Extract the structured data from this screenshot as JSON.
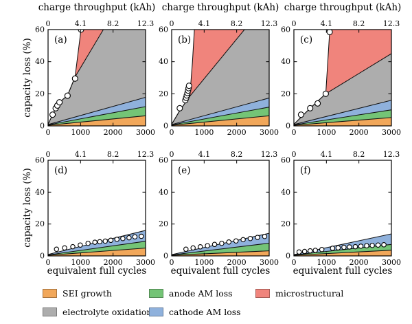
{
  "figure": {
    "top_axis_title": "charge throughput (kAh)",
    "bottom_axis_title": "equivalent full cycles",
    "y_axis_title": "capacity loss (%)"
  },
  "chart_data": {
    "type": "area",
    "description": "Stacked degradation-mechanism capacity loss vs equivalent full cycles, 6 panels (a)-(f); circles are measured capacity-loss data",
    "x_range": [
      0,
      3000
    ],
    "y_range": [
      0,
      60
    ],
    "grid": false,
    "x_ticks": {
      "values": [
        0,
        1000,
        2000,
        3000
      ],
      "labels": [
        "0",
        "1000",
        "2000",
        "3000"
      ]
    },
    "top_ticks": {
      "values": [
        0,
        1000,
        2000,
        3000
      ],
      "labels": [
        "0",
        "4.1",
        "8.2",
        "12.3"
      ]
    },
    "y_ticks": {
      "values": [
        0,
        20,
        40,
        60
      ],
      "labels": [
        "0",
        "20",
        "40",
        "60"
      ]
    },
    "colors": {
      "sei": "#f1a75a",
      "electrolyte": "#adadad",
      "anode": "#74c476",
      "cathode": "#8fb1dc",
      "micro": "#f0847c"
    },
    "stack_order": [
      "sei",
      "anode",
      "cathode",
      "electrolyte",
      "micro"
    ],
    "legend": [
      {
        "label": "SEI growth",
        "key": "sei"
      },
      {
        "label": "electrolyte oxidation",
        "key": "electrolyte"
      },
      {
        "label": "anode AM loss",
        "key": "anode"
      },
      {
        "label": "cathode AM loss",
        "key": "cathode"
      },
      {
        "label": "microstructural",
        "key": "micro"
      }
    ],
    "subplots": [
      {
        "tag": "(a)",
        "row": 0,
        "col": 0,
        "boundaries": {
          "sei": [
            [
              0,
              0.4
            ],
            [
              3000,
              6.3
            ]
          ],
          "anode": [
            [
              0,
              0.6
            ],
            [
              3000,
              12.0
            ]
          ],
          "cathode": [
            [
              0,
              0.8
            ],
            [
              3000,
              17.8
            ]
          ],
          "electrolyte": [
            [
              0,
              1
            ],
            [
              140,
              7
            ],
            [
              240,
              11.2
            ],
            [
              350,
              14.7
            ],
            [
              600,
              19
            ],
            [
              830,
              30.5
            ],
            [
              1700,
              60
            ],
            [
              3000,
              95
            ]
          ],
          "micro": [
            [
              0,
              1
            ],
            [
              140,
              7
            ],
            [
              240,
              11.2
            ],
            [
              350,
              14.7
            ],
            [
              600,
              19
            ],
            [
              830,
              30.5
            ],
            [
              1015,
              60
            ],
            [
              1070,
              250
            ],
            [
              3000,
              250
            ]
          ]
        },
        "points": [
          [
            140,
            7
          ],
          [
            235,
            11
          ],
          [
            285,
            12.7
          ],
          [
            350,
            14.7
          ],
          [
            600,
            18.8
          ],
          [
            830,
            29.5
          ],
          [
            1015,
            60
          ]
        ]
      },
      {
        "tag": "(b)",
        "row": 0,
        "col": 1,
        "boundaries": {
          "sei": [
            [
              0,
              0.4
            ],
            [
              3000,
              6.3
            ]
          ],
          "anode": [
            [
              0,
              0.6
            ],
            [
              3000,
              11.7
            ]
          ],
          "cathode": [
            [
              0,
              0.8
            ],
            [
              3000,
              17.4
            ]
          ],
          "electrolyte": [
            [
              0,
              1
            ],
            [
              250,
              9.5
            ],
            [
              560,
              18.5
            ],
            [
              2240,
              60
            ],
            [
              3000,
              79
            ]
          ],
          "micro": [
            [
              0,
              1
            ],
            [
              250,
              9.5
            ],
            [
              560,
              18.5
            ],
            [
              640,
              40
            ],
            [
              700,
              60
            ],
            [
              730,
              250
            ],
            [
              3000,
              250
            ]
          ]
        },
        "points": [
          [
            250,
            11
          ],
          [
            420,
            16
          ],
          [
            445,
            17.5
          ],
          [
            465,
            19
          ],
          [
            485,
            20.5
          ],
          [
            505,
            22
          ],
          [
            520,
            23.5
          ],
          [
            535,
            25
          ]
        ]
      },
      {
        "tag": "(c)",
        "row": 0,
        "col": 2,
        "boundaries": {
          "sei": [
            [
              0,
              0.4
            ],
            [
              3000,
              5.2
            ]
          ],
          "anode": [
            [
              0,
              0.6
            ],
            [
              3000,
              10.0
            ]
          ],
          "cathode": [
            [
              0,
              0.8
            ],
            [
              3000,
              16.0
            ]
          ],
          "electrolyte": [
            [
              0,
              1
            ],
            [
              500,
              11
            ],
            [
              980,
              20
            ],
            [
              3000,
              45
            ]
          ],
          "micro": [
            [
              0,
              1
            ],
            [
              500,
              11
            ],
            [
              980,
              20
            ],
            [
              1105,
              60
            ],
            [
              1150,
              250
            ],
            [
              3000,
              250
            ]
          ]
        },
        "points": [
          [
            220,
            7
          ],
          [
            500,
            11
          ],
          [
            730,
            14
          ],
          [
            980,
            20
          ],
          [
            1100,
            58.5
          ]
        ]
      },
      {
        "tag": "(d)",
        "row": 1,
        "col": 0,
        "boundaries": {
          "sei": [
            [
              0,
              0.4
            ],
            [
              3000,
              4.9
            ]
          ],
          "anode": [
            [
              0,
              0.6
            ],
            [
              3000,
              9.2
            ]
          ],
          "cathode": [
            [
              0,
              0.9
            ],
            [
              3000,
              16.0
            ]
          ]
        },
        "points": [
          [
            260,
            4.2
          ],
          [
            510,
            5.0
          ],
          [
            760,
            5.8
          ],
          [
            990,
            6.8
          ],
          [
            1230,
            7.9
          ],
          [
            1440,
            8.6
          ],
          [
            1590,
            8.9
          ],
          [
            1760,
            9.3
          ],
          [
            1930,
            9.8
          ],
          [
            2120,
            10.4
          ],
          [
            2300,
            10.9
          ],
          [
            2490,
            11.4
          ],
          [
            2670,
            12.0
          ],
          [
            2870,
            12.3
          ]
        ]
      },
      {
        "tag": "(e)",
        "row": 1,
        "col": 1,
        "boundaries": {
          "sei": [
            [
              0,
              0.4
            ],
            [
              3000,
              3.2
            ]
          ],
          "anode": [
            [
              0,
              0.6
            ],
            [
              3000,
              8.0
            ]
          ],
          "cathode": [
            [
              0,
              0.8
            ],
            [
              3000,
              14.2
            ]
          ]
        },
        "points": [
          [
            440,
            4.2
          ],
          [
            660,
            5.0
          ],
          [
            880,
            5.7
          ],
          [
            1100,
            6.4
          ],
          [
            1320,
            7.2
          ],
          [
            1540,
            7.9
          ],
          [
            1760,
            8.7
          ],
          [
            1980,
            9.4
          ],
          [
            2200,
            10.2
          ],
          [
            2420,
            10.9
          ],
          [
            2640,
            11.6
          ],
          [
            2860,
            12.2
          ]
        ]
      },
      {
        "tag": "(f)",
        "row": 1,
        "col": 2,
        "boundaries": {
          "sei": [
            [
              0,
              0.4
            ],
            [
              3000,
              3.6
            ]
          ],
          "anode": [
            [
              0,
              0.6
            ],
            [
              3000,
              7.2
            ]
          ],
          "cathode": [
            [
              0,
              0.8
            ],
            [
              3000,
              13.8
            ]
          ]
        },
        "points": [
          [
            160,
            2.5
          ],
          [
            330,
            2.8
          ],
          [
            500,
            3.2
          ],
          [
            660,
            3.5
          ],
          [
            860,
            4.0
          ],
          [
            1190,
            4.8
          ],
          [
            1360,
            5.1
          ],
          [
            1540,
            5.4
          ],
          [
            1710,
            5.6
          ],
          [
            1890,
            5.8
          ],
          [
            2060,
            6.1
          ],
          [
            2240,
            6.4
          ],
          [
            2410,
            6.6
          ],
          [
            2590,
            6.8
          ],
          [
            2770,
            7.0
          ]
        ]
      }
    ]
  }
}
